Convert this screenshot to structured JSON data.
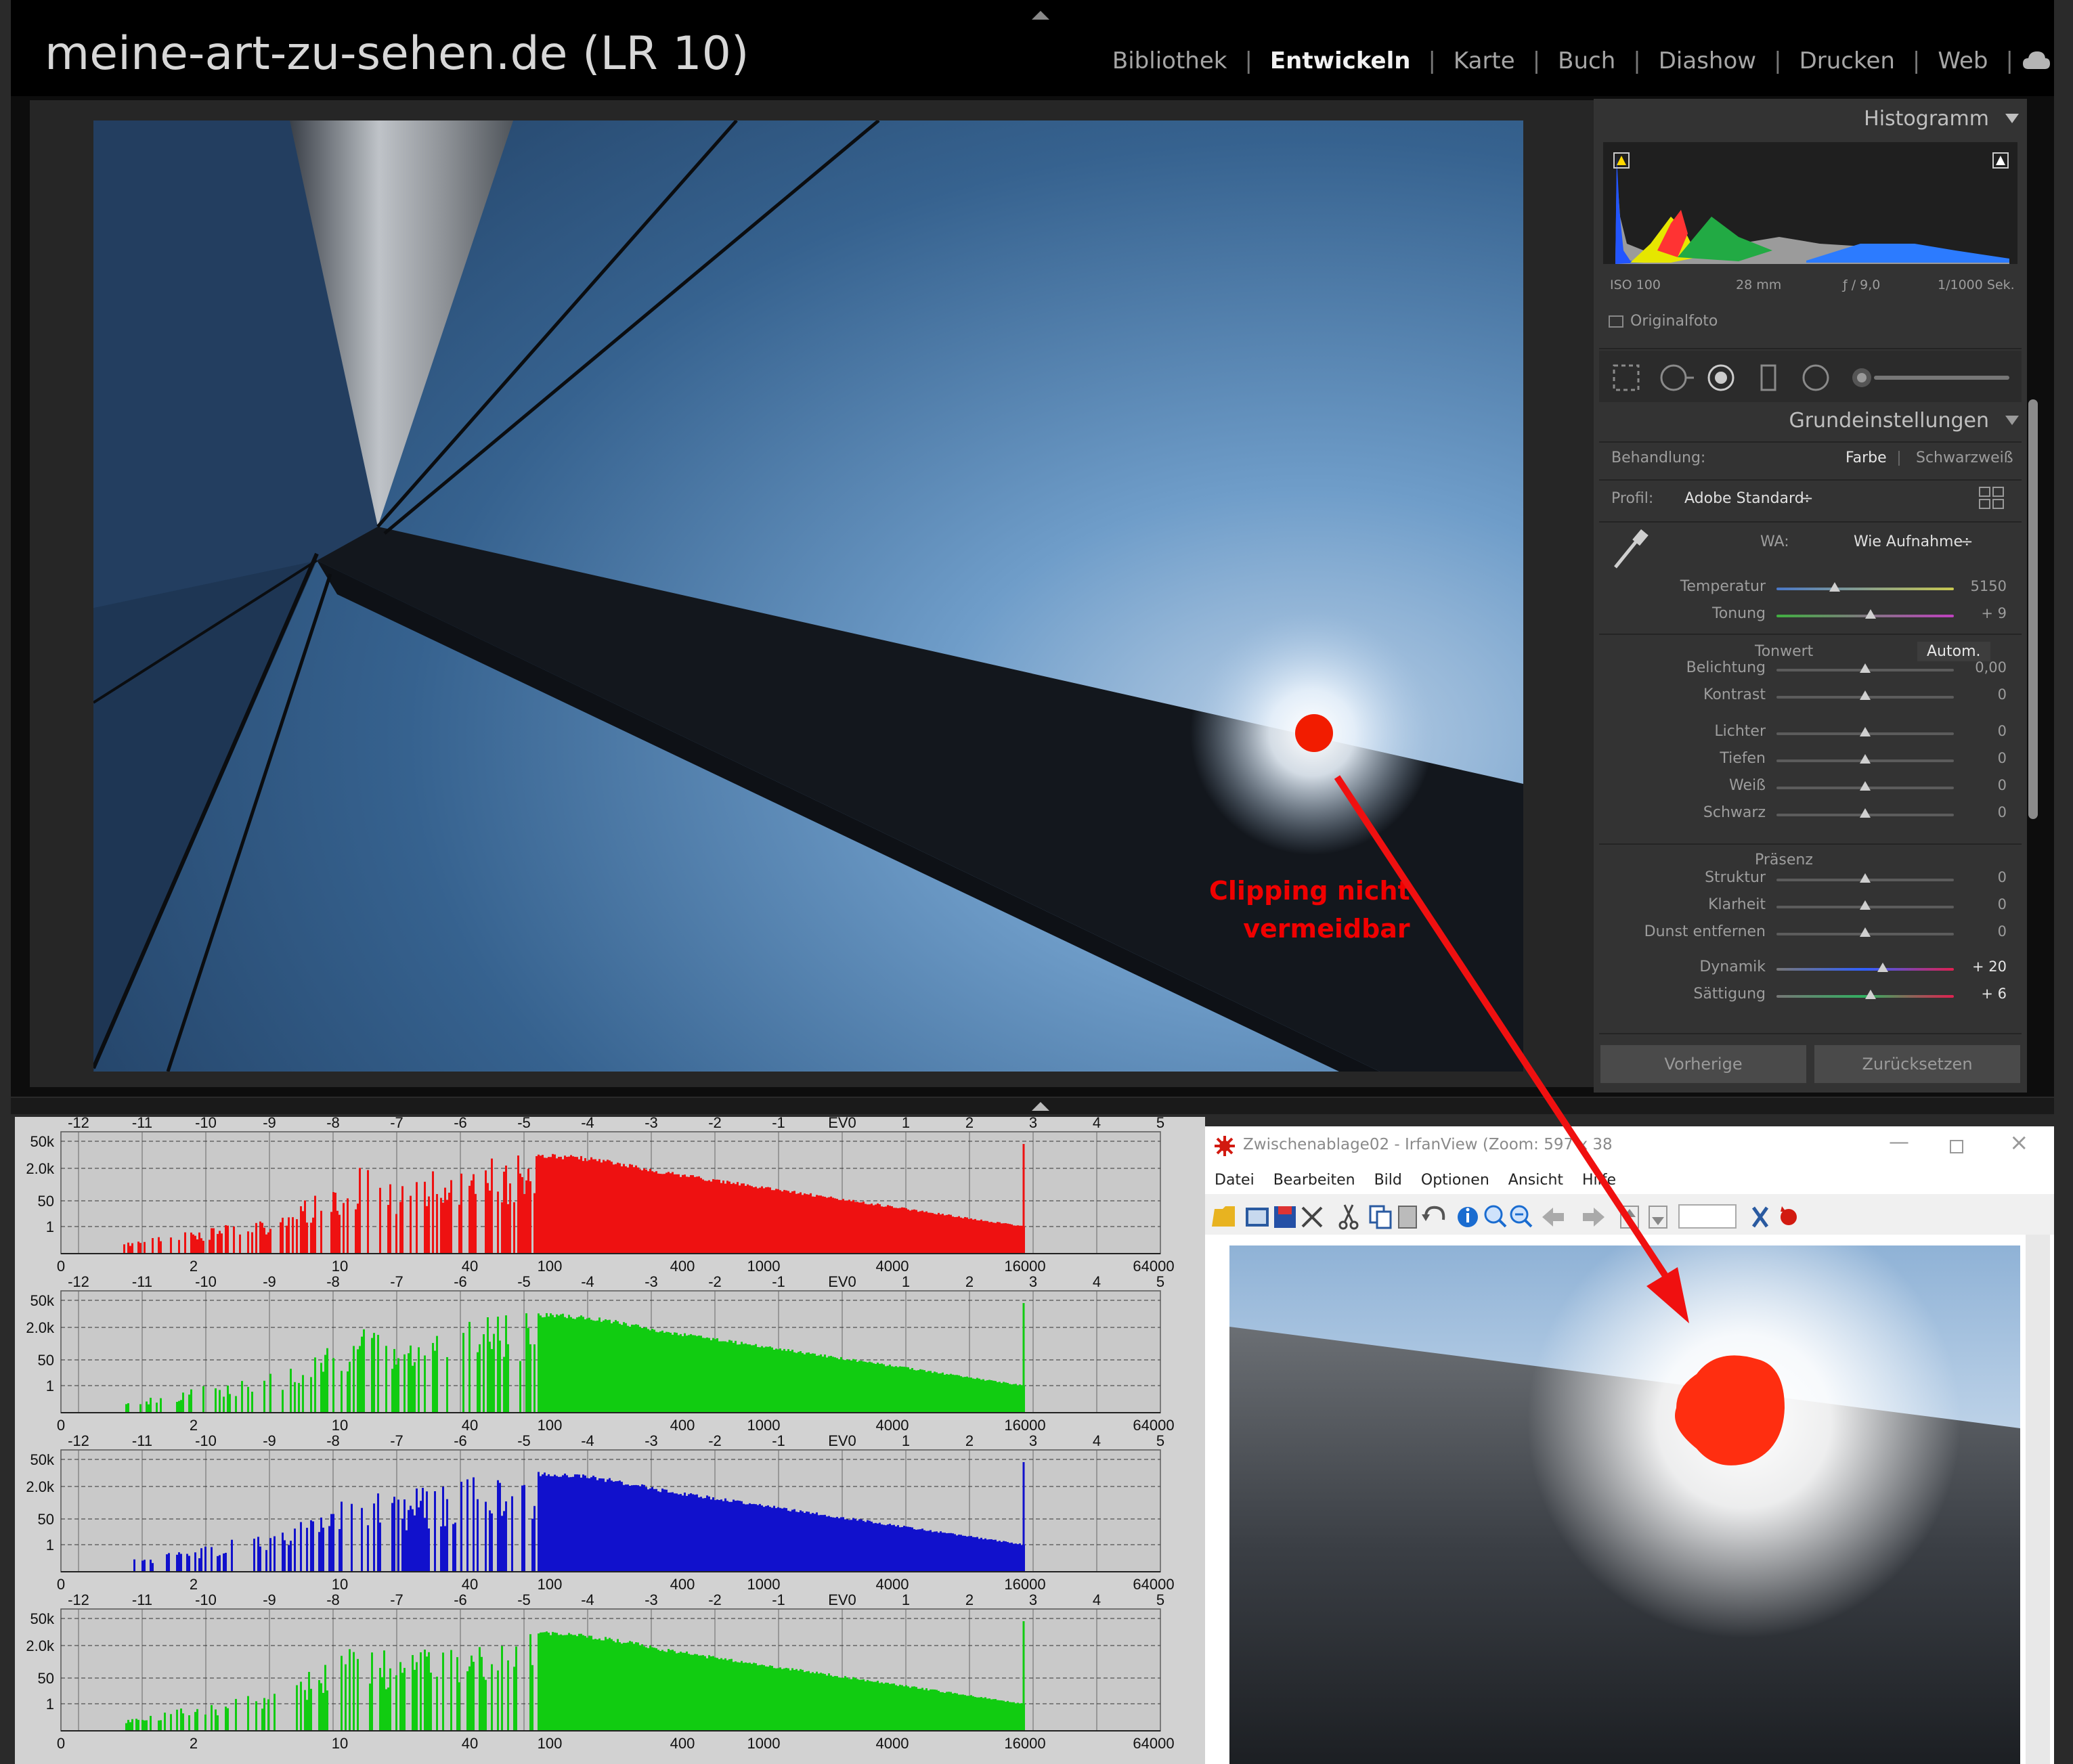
{
  "lightroom": {
    "title": "meine-art-zu-sehen.de (LR 10)",
    "modules": [
      {
        "label": "Bibliothek",
        "active": false
      },
      {
        "label": "Entwickeln",
        "active": true
      },
      {
        "label": "Karte",
        "active": false
      },
      {
        "label": "Buch",
        "active": false
      },
      {
        "label": "Diashow",
        "active": false
      },
      {
        "label": "Drucken",
        "active": false
      },
      {
        "label": "Web",
        "active": false
      }
    ],
    "histogram": {
      "title": "Histogramm",
      "iso": "ISO 100",
      "focal": "28 mm",
      "aperture": "ƒ / 9,0",
      "shutter": "1/1000 Sek.",
      "original_photo": "Originalfoto"
    },
    "basic": {
      "title": "Grundeinstellungen",
      "treatment_label": "Behandlung:",
      "treatment_color": "Farbe",
      "treatment_bw": "Schwarzweiß",
      "profile_label": "Profil:",
      "profile_value": "Adobe Standard",
      "wb_label": "WA:",
      "wb_value": "Wie Aufnahme",
      "tone_label": "Tonwert",
      "auto_label": "Autom.",
      "presence_label": "Präsenz",
      "sliders": [
        {
          "label": "Temperatur",
          "value": "5150",
          "pos": 0.33,
          "kind": "temp"
        },
        {
          "label": "Tonung",
          "value": "+ 9",
          "pos": 0.53,
          "kind": "tint"
        },
        {
          "label": "Belichtung",
          "value": "0,00",
          "pos": 0.5,
          "kind": "plain"
        },
        {
          "label": "Kontrast",
          "value": "0",
          "pos": 0.5,
          "kind": "plain"
        },
        {
          "label": "Lichter",
          "value": "0",
          "pos": 0.5,
          "kind": "plain"
        },
        {
          "label": "Tiefen",
          "value": "0",
          "pos": 0.5,
          "kind": "plain"
        },
        {
          "label": "Weiß",
          "value": "0",
          "pos": 0.5,
          "kind": "plain"
        },
        {
          "label": "Schwarz",
          "value": "0",
          "pos": 0.5,
          "kind": "plain"
        },
        {
          "label": "Struktur",
          "value": "0",
          "pos": 0.5,
          "kind": "plain"
        },
        {
          "label": "Klarheit",
          "value": "0",
          "pos": 0.5,
          "kind": "plain"
        },
        {
          "label": "Dunst entfernen",
          "value": "0",
          "pos": 0.5,
          "kind": "plain"
        },
        {
          "label": "Dynamik",
          "value": "+ 20",
          "pos": 0.6,
          "kind": "vib"
        },
        {
          "label": "Sättigung",
          "value": "+ 6",
          "pos": 0.53,
          "kind": "sat"
        }
      ]
    },
    "buttons": {
      "previous": "Vorherige",
      "reset": "Zurücksetzen"
    },
    "annotation": [
      "Clipping nicht",
      "vermeidbar"
    ]
  },
  "rawhist": {
    "ev_ticks": [
      "-12",
      "-11",
      "-10",
      "-9",
      "-8",
      "-7",
      "-6",
      "-5",
      "-4",
      "-3",
      "-2",
      "-1",
      "EV0",
      "1",
      "2",
      "3",
      "4",
      "5"
    ],
    "y_ticks": [
      "50k",
      "2.0k",
      "50",
      "1"
    ],
    "x_ticks": [
      "0",
      "2",
      "10",
      "40",
      "100",
      "400",
      "1000",
      "4000",
      "16000",
      "64000"
    ],
    "channels": [
      {
        "name": "red",
        "color": "#ee1111"
      },
      {
        "name": "green",
        "color": "#11cc11"
      },
      {
        "name": "blue",
        "color": "#1111cc"
      },
      {
        "name": "green2",
        "color": "#11cc11"
      }
    ]
  },
  "irfanview": {
    "title": "Zwischenablage02 - IrfanView (Zoom: 597 x 38",
    "menu": [
      "Datei",
      "Bearbeiten",
      "Bild",
      "Optionen",
      "Ansicht",
      "Hilfe"
    ],
    "colors": {
      "accent": "#e03010"
    }
  }
}
